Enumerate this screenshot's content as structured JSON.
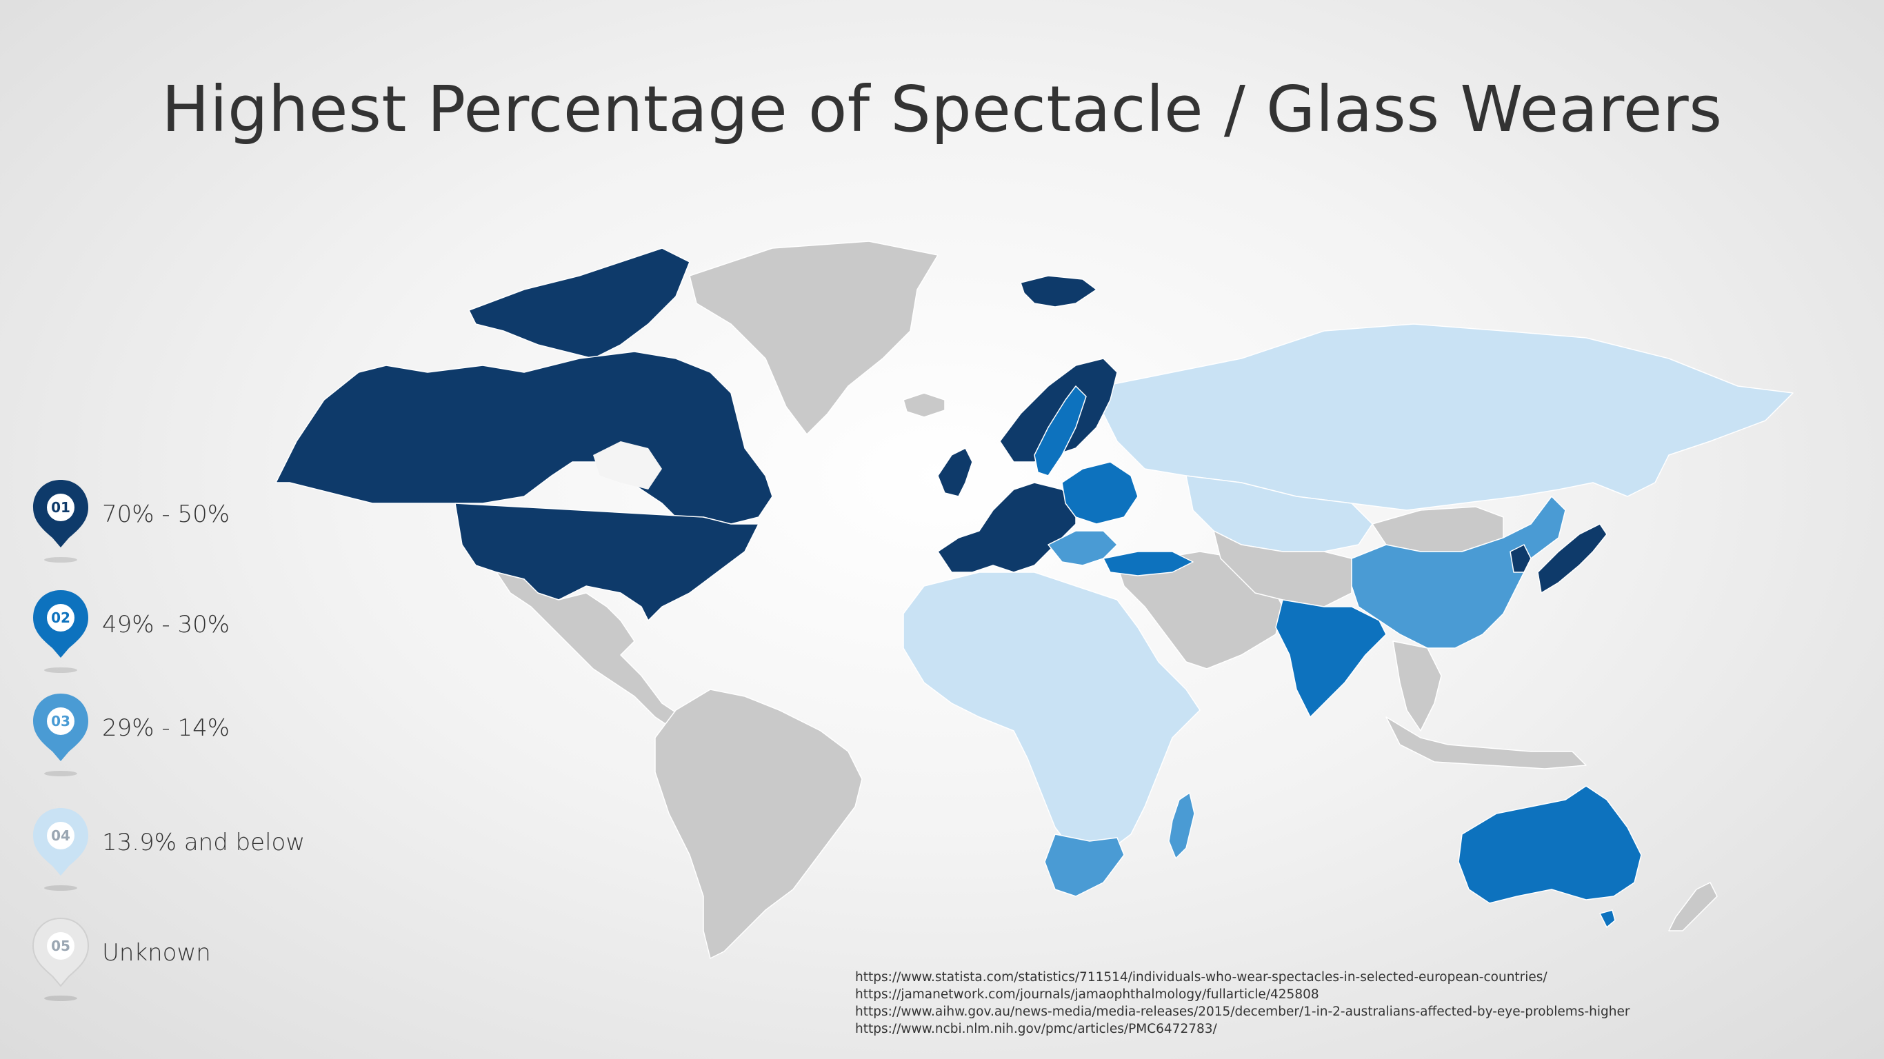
{
  "title": "Highest Percentage of Spectacle / Glass Wearers",
  "colors": {
    "tier1": "#0e3a6a",
    "tier2": "#0d72be",
    "tier3": "#4a9bd4",
    "tier4": "#c9e2f4",
    "tier5": "#c9c9c9"
  },
  "legend": [
    {
      "number": "01",
      "label": "70% - 50%",
      "color": "#0e3a6a"
    },
    {
      "number": "02",
      "label": "49% - 30%",
      "color": "#0d72be"
    },
    {
      "number": "03",
      "label": "29% - 14%",
      "color": "#4a9bd4"
    },
    {
      "number": "04",
      "label": "13.9% and below",
      "color": "#c9e2f4"
    },
    {
      "number": "05",
      "label": "Unknown",
      "color": "#e8e8e8"
    }
  ],
  "regions": {
    "tier1": [
      "Canada",
      "United States",
      "Greenland-adjacent Arctic islands",
      "Svalbard",
      "United Kingdom",
      "Ireland",
      "France",
      "Spain",
      "Portugal",
      "Germany",
      "Netherlands",
      "Belgium",
      "Switzerland",
      "Austria",
      "Italy",
      "Norway",
      "Finland",
      "Japan",
      "South Korea"
    ],
    "tier2": [
      "Sweden",
      "Poland",
      "Baltic states",
      "Belarus",
      "Ukraine",
      "Turkey",
      "Greece",
      "India",
      "Australia"
    ],
    "tier3": [
      "China",
      "South Africa",
      "Madagascar",
      "Romania",
      "Bulgaria"
    ],
    "tier4": [
      "Russia",
      "Kazakhstan",
      "Africa (most)"
    ],
    "tier5": [
      "Greenland",
      "Iceland",
      "Mexico",
      "Central America",
      "South America",
      "Middle East",
      "Central Asia",
      "Mongolia",
      "Southeast Asia",
      "Indonesia",
      "New Zealand"
    ]
  },
  "sources": [
    "https://www.statista.com/statistics/711514/individuals-who-wear-spectacles-in-selected-european-countries/",
    "https://jamanetwork.com/journals/jamaophthalmology/fullarticle/425808",
    "https://www.aihw.gov.au/news-media/media-releases/2015/december/1-in-2-australians-affected-by-eye-problems-higher",
    "https://www.ncbi.nlm.nih.gov/pmc/articles/PMC6472783/"
  ]
}
